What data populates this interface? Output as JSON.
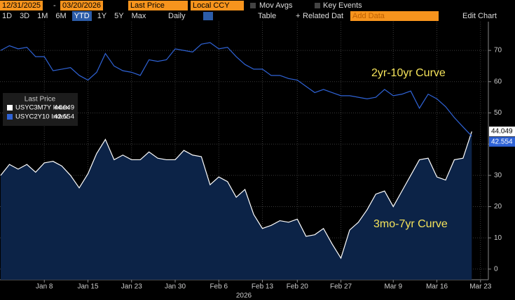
{
  "toolbar": {
    "start_date": "12/31/2025",
    "end_date": "03/20/2026",
    "field": "Last Price",
    "currency": "Local CCY",
    "mov_avgs": "Mov Avgs",
    "key_events": "Key Events",
    "ranges": [
      "1D",
      "3D",
      "1M",
      "6M",
      "YTD",
      "1Y",
      "5Y",
      "Max"
    ],
    "selected_range": "YTD",
    "period": "Daily",
    "table": "Table",
    "related": "Related Dat",
    "add_data": "Add Data",
    "edit_chart": "Edit Chart"
  },
  "chart_data": {
    "type": "line",
    "legend_title": "Last Price",
    "annotations": [
      "2yr-10yr Curve",
      "3mo-7yr Curve"
    ],
    "xlabel": "2026",
    "categories": [
      null,
      null,
      null,
      null,
      null,
      "Jan 8",
      null,
      null,
      null,
      null,
      "Jan 15",
      null,
      null,
      null,
      null,
      "Jan 23",
      null,
      null,
      null,
      null,
      "Jan 30",
      null,
      null,
      null,
      null,
      "Feb 6",
      null,
      null,
      null,
      null,
      "Feb 13",
      null,
      null,
      null,
      "Feb 20",
      null,
      null,
      null,
      null,
      "Feb 27",
      null,
      null,
      null,
      null,
      null,
      "Mar 9",
      null,
      null,
      null,
      null,
      "Mar 16",
      null,
      null,
      null,
      null,
      "Mar 23"
    ],
    "series": [
      {
        "name": "USYC3M7Y Index",
        "color": "#ffffff",
        "fill": "#0c2347",
        "values": [
          30,
          33.5,
          32,
          33.5,
          31,
          34,
          34.5,
          33,
          30,
          26,
          30.5,
          37,
          41.5,
          35,
          36.5,
          35,
          35,
          37.5,
          35.5,
          35,
          35,
          38,
          36.5,
          36,
          27,
          29.5,
          28,
          23,
          25.5,
          17.5,
          13,
          14,
          15.5,
          15,
          16,
          10.5,
          11,
          13,
          8,
          3.5,
          12.5,
          15,
          19,
          24,
          25,
          20,
          25,
          30,
          35,
          35.5,
          29.5,
          28.5,
          35,
          35.5,
          44.049,
          null
        ]
      },
      {
        "name": "USYC2Y10 Index",
        "color": "#2f63d6",
        "values": [
          70,
          71.5,
          70.5,
          71,
          68,
          68,
          63.5,
          64,
          64.5,
          62,
          60.5,
          63,
          69,
          65,
          63.5,
          63,
          62,
          67,
          66.5,
          67,
          70.5,
          70,
          69.5,
          72,
          72.5,
          70.5,
          71,
          68,
          65.5,
          64,
          64,
          62,
          62,
          61,
          60.5,
          58.5,
          56.5,
          57.5,
          56.5,
          55.5,
          55.5,
          55,
          54.5,
          55,
          57.5,
          55.5,
          56,
          57,
          51.5,
          56,
          54.5,
          52,
          48.5,
          45.5,
          42.554,
          null
        ]
      }
    ],
    "ylim": [
      -3.4,
      79.2
    ],
    "yticks": [
      0,
      10,
      20,
      30,
      40,
      50,
      60,
      70
    ],
    "grid": true
  }
}
